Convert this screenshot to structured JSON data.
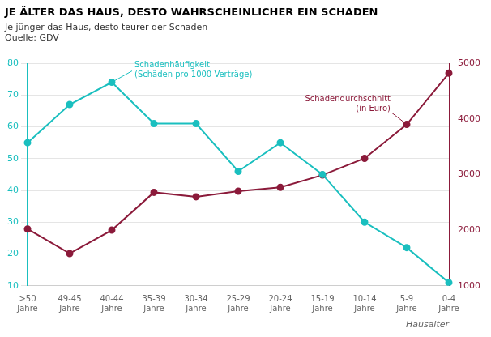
{
  "chart_data": {
    "type": "line",
    "title": "JE ÄLTER DAS HAUS, DESTO WAHRSCHEINLICHER EIN SCHADEN",
    "subtitle": "Je jünger das Haus, desto teurer der Schaden",
    "source": "Quelle: GDV",
    "xlabel": "Hausalter",
    "categories": [
      ">50\nJahre",
      "49-45\nJahre",
      "40-44\nJahre",
      "35-39\nJahre",
      "30-34\nJahre",
      "25-29\nJahre",
      "20-24\nJahre",
      "15-19\nJahre",
      "10-14\nJahre",
      "5-9\nJahre",
      "0-4\nJahre"
    ],
    "series": [
      {
        "color": "#1ABFBF",
        "marker": "circle",
        "values": [
          55,
          67,
          74,
          61,
          61,
          46,
          55,
          45,
          30,
          22,
          11
        ]
      },
      {
        "color": "#8B1A3A",
        "marker": "circle",
        "axis": "y2",
        "values": [
          2020,
          1580,
          2000,
          2680,
          2600,
          2700,
          2770,
          2990,
          3290,
          3900,
          4820
        ]
      }
    ],
    "ylim": [
      10,
      80
    ],
    "yticks": [
      10,
      20,
      30,
      40,
      50,
      60,
      70,
      80
    ],
    "y2lim": [
      1000,
      5000
    ],
    "y2ticks": [
      1000,
      2000,
      3000,
      4000,
      5000
    ],
    "grid": true,
    "annotations": [
      {
        "text": "Schadenhäufigkeit\n(Schäden pro 1000 Verträge)",
        "category": "40-44\nJahre",
        "axis": "y"
      },
      {
        "text": "Schadendurchschnitt\n(in Euro)",
        "category": "5-9\nJahre",
        "axis": "y2"
      }
    ]
  }
}
